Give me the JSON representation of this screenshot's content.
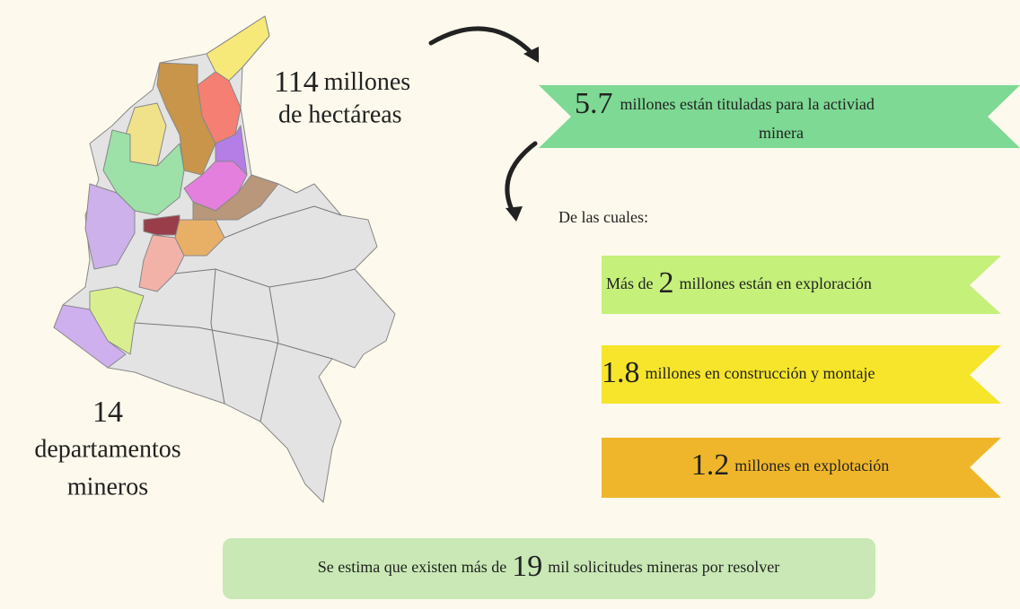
{
  "map_caption": {
    "number": "114",
    "unit": "millones",
    "line2": "de hectáreas"
  },
  "departments": {
    "number": "14",
    "line1": "departamentos",
    "line2": "mineros"
  },
  "titled": {
    "number": "5.7",
    "line1": "millones están tituladas para la activiad",
    "line2": "minera"
  },
  "intro": "De las cuales:",
  "exploration": {
    "prefix": "Más de",
    "number": "2",
    "suffix": "millones están en exploración"
  },
  "construction": {
    "number": "1.8",
    "suffix": "millones en construcción y montaje"
  },
  "exploitation": {
    "number": "1.2",
    "suffix": "millones en explotación"
  },
  "requests": {
    "prefix": "Se estima que existen más de",
    "number": "19",
    "suffix": "mil solicitudes mineras por resolver"
  }
}
